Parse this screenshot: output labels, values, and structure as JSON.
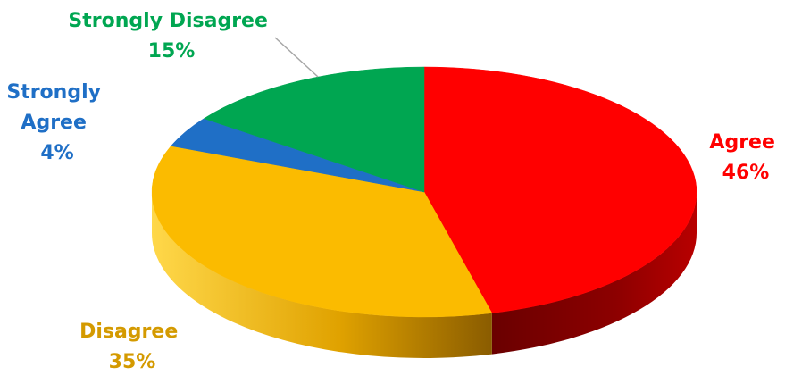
{
  "chart_data": {
    "type": "pie",
    "style": "3d",
    "slices": [
      {
        "label": "Agree",
        "percent_label": "46%",
        "value": 46,
        "color": "#ff0000",
        "side_color": "#7a0000"
      },
      {
        "label": "Disagree",
        "percent_label": "35%",
        "value": 35,
        "color": "#fbbb00",
        "side_color": "#b57f00"
      },
      {
        "label": "Strongly Agree",
        "percent_label": "4%",
        "value": 4,
        "color": "#1f6fc6",
        "side_color": "#144a86"
      },
      {
        "label": "Strongly Disagree",
        "percent_label": "15%",
        "value": 15,
        "color": "#00a651",
        "side_color": "#006b34"
      }
    ],
    "label_colors": {
      "Agree": "#ff0000",
      "Disagree": "#d49a00",
      "Strongly Agree": "#1f6fc6",
      "Strongly Disagree": "#00a651"
    },
    "title": ""
  }
}
